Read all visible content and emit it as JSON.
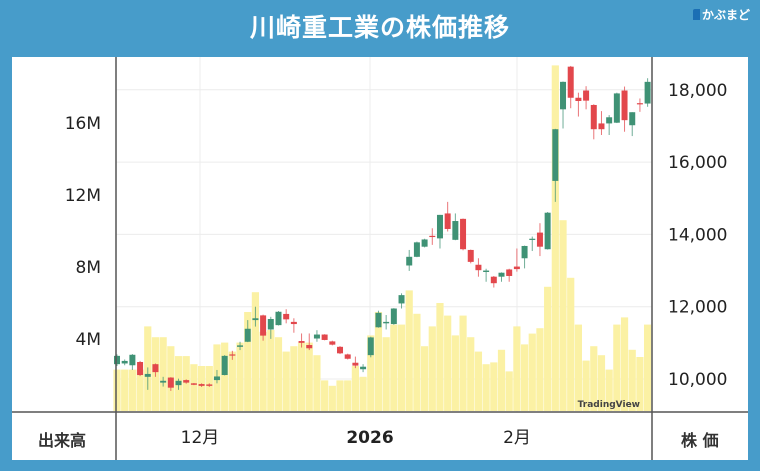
{
  "header": {
    "title": "川崎重工業の株価推移",
    "logo": "かぶまど"
  },
  "footer": {
    "left_label": "出来高",
    "right_label": "株 価"
  },
  "watermark": "TradingView",
  "colors": {
    "up": "#3f9275",
    "down": "#e2474c",
    "volume": "#fbf1a4",
    "background": "#479cca"
  },
  "chart_data": {
    "type": "candlestick",
    "title": "川崎重工業の株価推移",
    "x_tick_labels": [
      "12月",
      "2026",
      "2月"
    ],
    "price_axis": {
      "label": "株 価",
      "ticks": [
        "10,000",
        "12,000",
        "14,000",
        "16,000",
        "18,000"
      ],
      "tick_values": [
        10000,
        12000,
        14000,
        16000,
        18000
      ],
      "range": [
        9200,
        19200
      ]
    },
    "volume_axis": {
      "label": "出来高",
      "ticks": [
        "4M",
        "8M",
        "12M",
        "16M"
      ],
      "tick_values": [
        4,
        8,
        12,
        16
      ],
      "unit": "M"
    },
    "ohlc": [
      [
        10410,
        10680,
        10360,
        10640
      ],
      [
        10430,
        10540,
        10380,
        10500
      ],
      [
        10380,
        10690,
        10250,
        10670
      ],
      [
        10470,
        10500,
        10080,
        10110
      ],
      [
        10060,
        10320,
        9700,
        10140
      ],
      [
        10410,
        10430,
        10060,
        10190
      ],
      [
        9900,
        10060,
        9790,
        9950
      ],
      [
        10040,
        10050,
        9670,
        9760
      ],
      [
        9830,
        10010,
        9700,
        9950
      ],
      [
        9970,
        9990,
        9870,
        9900
      ],
      [
        9880,
        9890,
        9830,
        9840
      ],
      [
        9860,
        9880,
        9780,
        9810
      ],
      [
        9850,
        9880,
        9780,
        9810
      ],
      [
        9970,
        10250,
        9880,
        10070
      ],
      [
        10110,
        10660,
        10100,
        10640
      ],
      [
        10680,
        10780,
        10530,
        10660
      ],
      [
        10890,
        11030,
        10800,
        10930
      ],
      [
        11030,
        11630,
        11020,
        11390
      ],
      [
        11630,
        12000,
        11450,
        11680
      ],
      [
        11760,
        11780,
        11060,
        11200
      ],
      [
        11370,
        11720,
        11110,
        11660
      ],
      [
        11490,
        11880,
        11480,
        11860
      ],
      [
        11800,
        11930,
        11540,
        11650
      ],
      [
        11580,
        11680,
        11280,
        11520
      ],
      [
        11050,
        11260,
        10870,
        11000
      ],
      [
        10940,
        11260,
        10800,
        10850
      ],
      [
        11120,
        11350,
        11030,
        11230
      ],
      [
        11230,
        11240,
        11070,
        11080
      ],
      [
        11040,
        11060,
        10930,
        10950
      ],
      [
        10890,
        10910,
        10690,
        10710
      ],
      [
        10680,
        10700,
        10540,
        10560
      ],
      [
        10450,
        10620,
        10300,
        10370
      ],
      [
        10270,
        10410,
        10190,
        10340
      ],
      [
        10660,
        11170,
        10600,
        11150
      ],
      [
        11430,
        11890,
        11420,
        11830
      ],
      [
        11540,
        11770,
        11370,
        11580
      ],
      [
        11520,
        11960,
        11500,
        11950
      ],
      [
        12090,
        12370,
        11950,
        12320
      ],
      [
        13140,
        13570,
        12990,
        13380
      ],
      [
        13380,
        13800,
        13370,
        13780
      ],
      [
        13660,
        13880,
        13640,
        13860
      ],
      [
        13960,
        14170,
        13710,
        13940
      ],
      [
        13890,
        14540,
        13610,
        14540
      ],
      [
        14580,
        14900,
        14080,
        14150
      ],
      [
        13850,
        14580,
        13840,
        14370
      ],
      [
        14430,
        14440,
        13560,
        13590
      ],
      [
        13570,
        13580,
        13200,
        13240
      ],
      [
        13160,
        13340,
        12830,
        13010
      ],
      [
        12960,
        13050,
        12690,
        13000
      ],
      [
        12830,
        12850,
        12530,
        12650
      ],
      [
        12830,
        12950,
        12690,
        12940
      ],
      [
        13030,
        13050,
        12690,
        12850
      ],
      [
        13110,
        13610,
        12970,
        13040
      ],
      [
        13340,
        13690,
        13060,
        13680
      ],
      [
        13860,
        13940,
        13540,
        13880
      ],
      [
        14050,
        14310,
        13400,
        13660
      ],
      [
        13590,
        14620,
        13580,
        14600
      ],
      [
        15480,
        16920,
        14900,
        16910
      ],
      [
        17460,
        18230,
        16930,
        18220
      ],
      [
        18640,
        18660,
        17490,
        17780
      ],
      [
        17780,
        17920,
        17260,
        17690
      ],
      [
        17980,
        18100,
        17460,
        17700
      ],
      [
        17580,
        17600,
        16630,
        16910
      ],
      [
        17070,
        17410,
        16750,
        16910
      ],
      [
        17070,
        17300,
        16750,
        17240
      ],
      [
        17090,
        17920,
        17080,
        17900
      ],
      [
        17980,
        18090,
        16840,
        17160
      ],
      [
        17020,
        17380,
        16720,
        17380
      ],
      [
        17630,
        17760,
        17390,
        17620
      ],
      [
        17620,
        18320,
        17530,
        18220
      ]
    ],
    "volume_millions": [
      2.3,
      2.3,
      2.3,
      2.3,
      4.7,
      4.1,
      4.1,
      3.6,
      3.05,
      3.05,
      2.6,
      2.5,
      2.5,
      3.7,
      3.8,
      3.3,
      3.8,
      5.5,
      6.6,
      4.4,
      4.5,
      4.1,
      3.3,
      3.6,
      3.8,
      3.8,
      3.1,
      1.7,
      1.4,
      1.7,
      1.7,
      2.5,
      1.9,
      4.2,
      5.5,
      4.1,
      4.8,
      4.8,
      6.7,
      5.4,
      3.6,
      4.7,
      6.0,
      5.3,
      4.2,
      5.3,
      4.1,
      3.3,
      2.6,
      2.7,
      3.4,
      2.2,
      4.7,
      3.7,
      4.3,
      4.6,
      6.9,
      19.2,
      10.6,
      7.4,
      4.8,
      2.8,
      3.6,
      3.1,
      2.3,
      4.8,
      5.2,
      3.4,
      3.0,
      4.8
    ]
  }
}
